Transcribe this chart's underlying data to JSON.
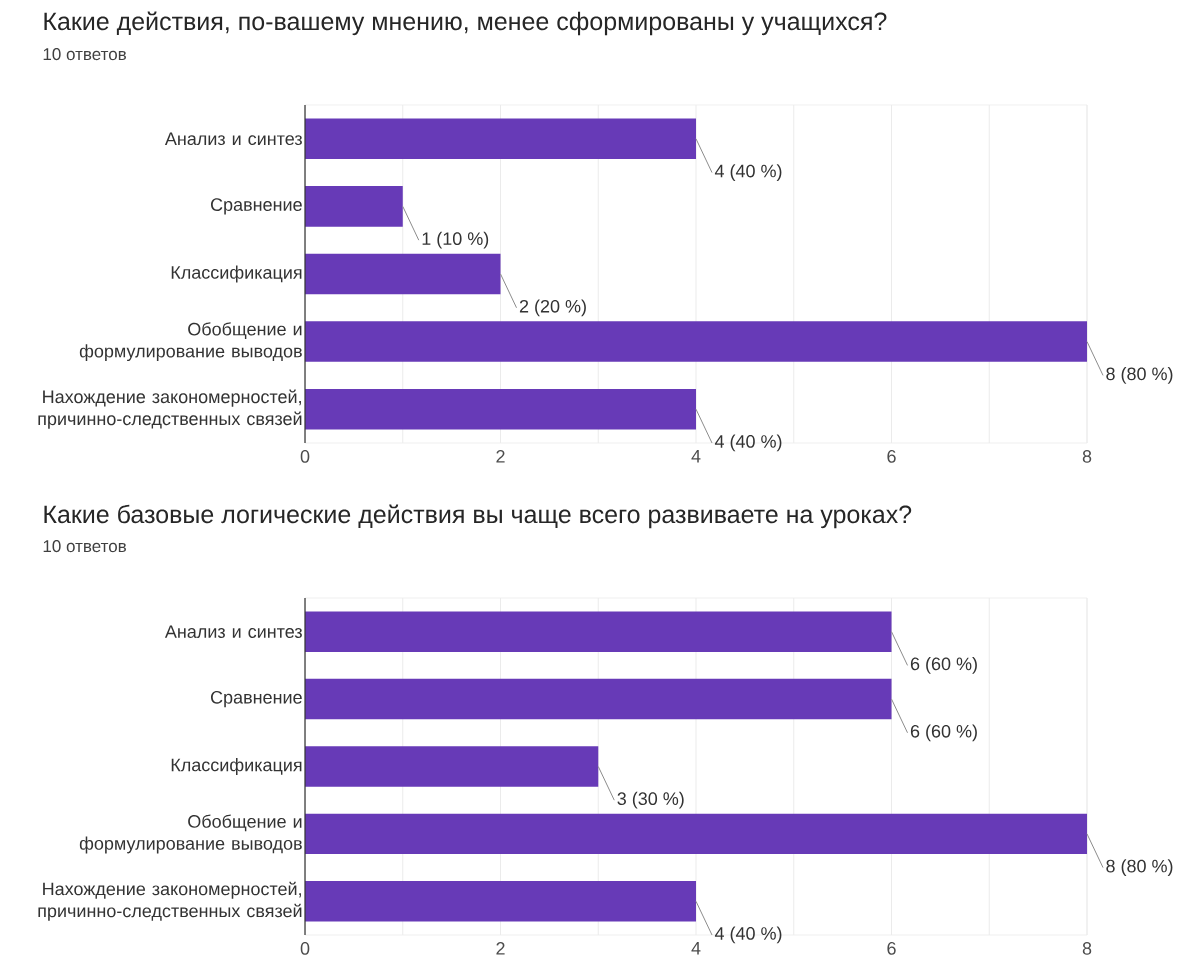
{
  "chart_data": [
    {
      "type": "bar",
      "orientation": "horizontal",
      "title": "Какие действия, по-вашему мнению, менее сформированы у учащихся?",
      "subtitle": "10 ответов",
      "categories": [
        "Анализ и синтез",
        "Сравнение",
        "Классификация",
        "Обобщение и формулирование выводов",
        "Нахождение закономерностей, причинно-следственных связей"
      ],
      "values": [
        4,
        1,
        2,
        8,
        4
      ],
      "value_labels": [
        "4 (40 %)",
        "1 (10 %)",
        "2 (20 %)",
        "8 (80 %)",
        "4 (40 %)"
      ],
      "color": "#673ab7",
      "xlim": [
        0,
        8
      ],
      "xticks": [
        0,
        {
          "value": 1,
          "label": null
        },
        2,
        {
          "value": 3,
          "label": null
        },
        4,
        {
          "value": 5,
          "label": null
        },
        6,
        {
          "value": 7,
          "label": null
        },
        8
      ],
      "grid": "x"
    },
    {
      "type": "bar",
      "orientation": "horizontal",
      "title": "Какие базовые логические действия вы чаще всего развиваете на уроках?",
      "subtitle": "10 ответов",
      "categories": [
        "Анализ и синтез",
        "Сравнение",
        "Классификация",
        "Обобщение и формулирование выводов",
        "Нахождение закономерностей, причинно-следственных связей"
      ],
      "values": [
        6,
        6,
        3,
        8,
        4
      ],
      "value_labels": [
        "6 (60 %)",
        "6 (60 %)",
        "3 (30 %)",
        "8 (80 %)",
        "4 (40 %)"
      ],
      "color": "#673ab7",
      "xlim": [
        0,
        8
      ],
      "xticks": [
        0,
        {
          "value": 1,
          "label": null
        },
        2,
        {
          "value": 3,
          "label": null
        },
        4,
        {
          "value": 5,
          "label": null
        },
        6,
        {
          "value": 7,
          "label": null
        },
        8
      ],
      "grid": "x"
    }
  ]
}
